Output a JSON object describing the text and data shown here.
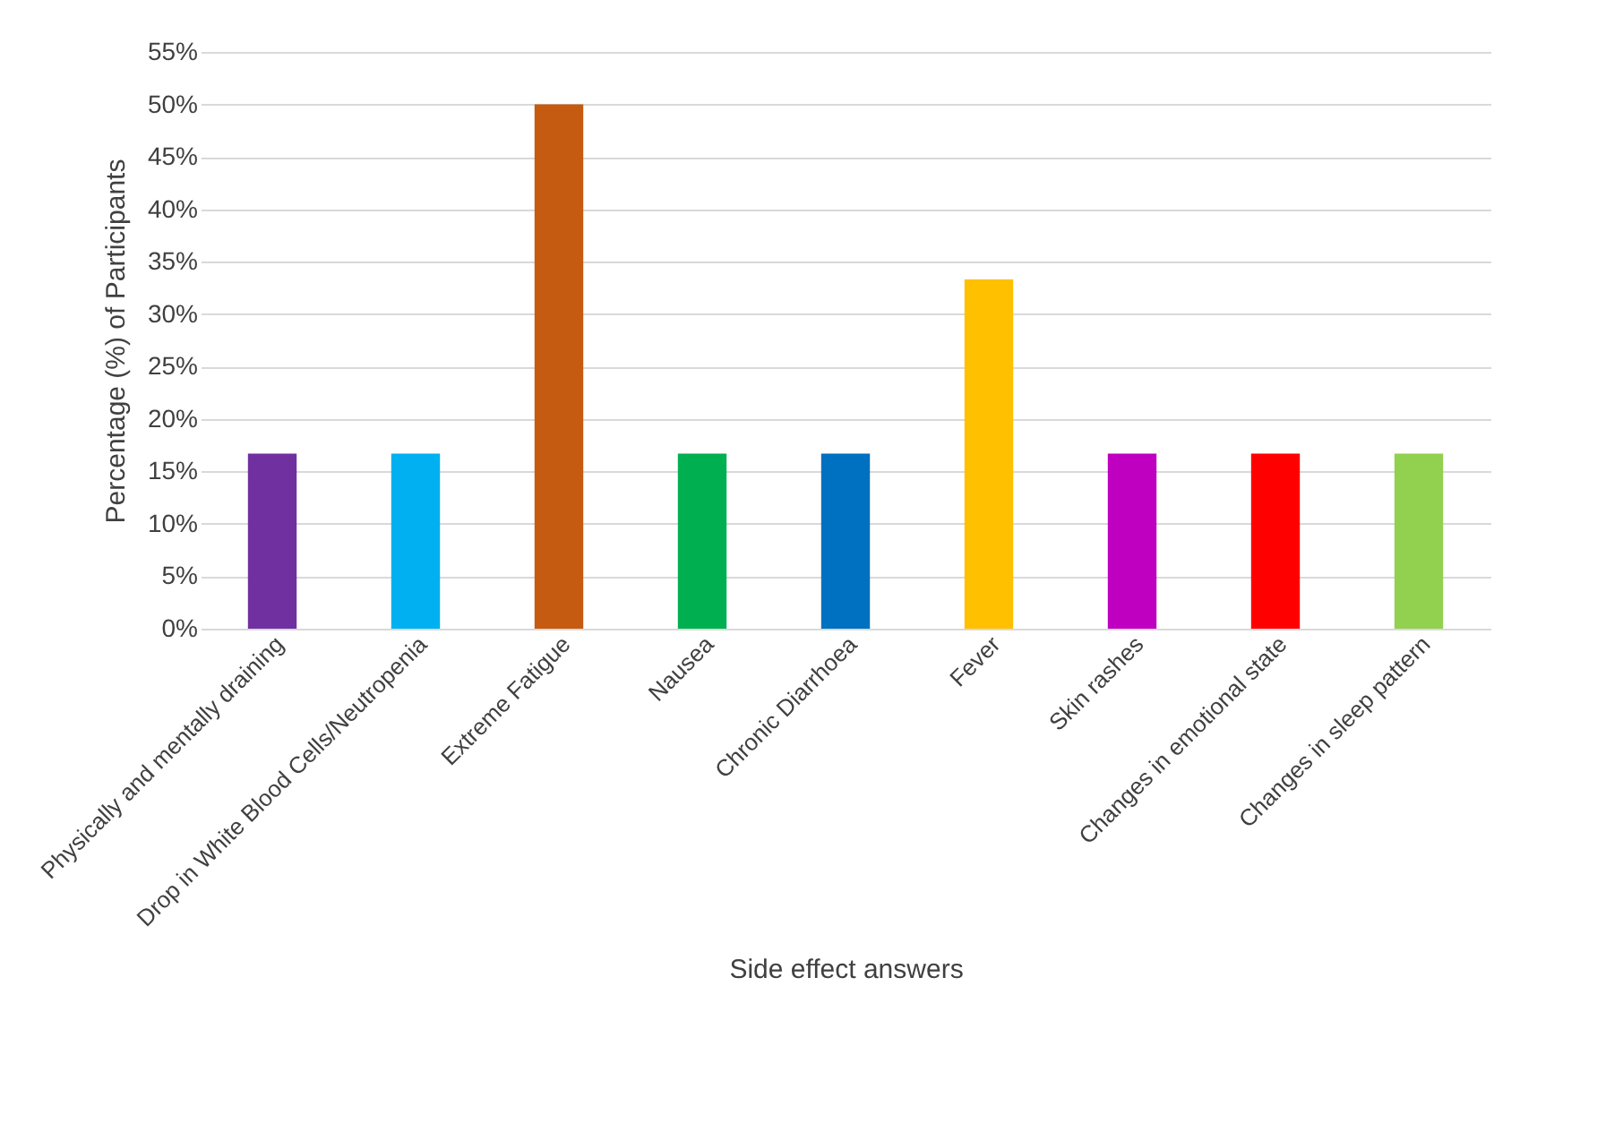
{
  "chart_data": {
    "type": "bar",
    "xlabel": "Side effect answers",
    "ylabel": "Percentage (%) of Participants",
    "categories": [
      "Physically and mentally draining",
      "Drop in White Blood Cells/Neutropenia",
      "Extreme Fatigue",
      "Nausea",
      "Chronic Diarrhoea",
      "Fever",
      "Skin rashes",
      "Changes in emotional state",
      "Changes in sleep pattern"
    ],
    "values": [
      16.7,
      16.7,
      50,
      16.7,
      16.7,
      33.3,
      16.7,
      16.7,
      16.7
    ],
    "colors": [
      "#7030a0",
      "#00b0f0",
      "#c55a11",
      "#00b050",
      "#0070c0",
      "#ffc000",
      "#c000c0",
      "#ff0000",
      "#92d050"
    ],
    "ylim": [
      0,
      55
    ],
    "yticks": [
      {
        "value": 0,
        "label": "0%"
      },
      {
        "value": 5,
        "label": "5%"
      },
      {
        "value": 10,
        "label": "10%"
      },
      {
        "value": 15,
        "label": "15%"
      },
      {
        "value": 20,
        "label": "20%"
      },
      {
        "value": 25,
        "label": "25%"
      },
      {
        "value": 30,
        "label": "30%"
      },
      {
        "value": 35,
        "label": "35%"
      },
      {
        "value": 40,
        "label": "40%"
      },
      {
        "value": 45,
        "label": "45%"
      },
      {
        "value": 50,
        "label": "50%"
      },
      {
        "value": 55,
        "label": "55%"
      }
    ],
    "grid": true
  }
}
